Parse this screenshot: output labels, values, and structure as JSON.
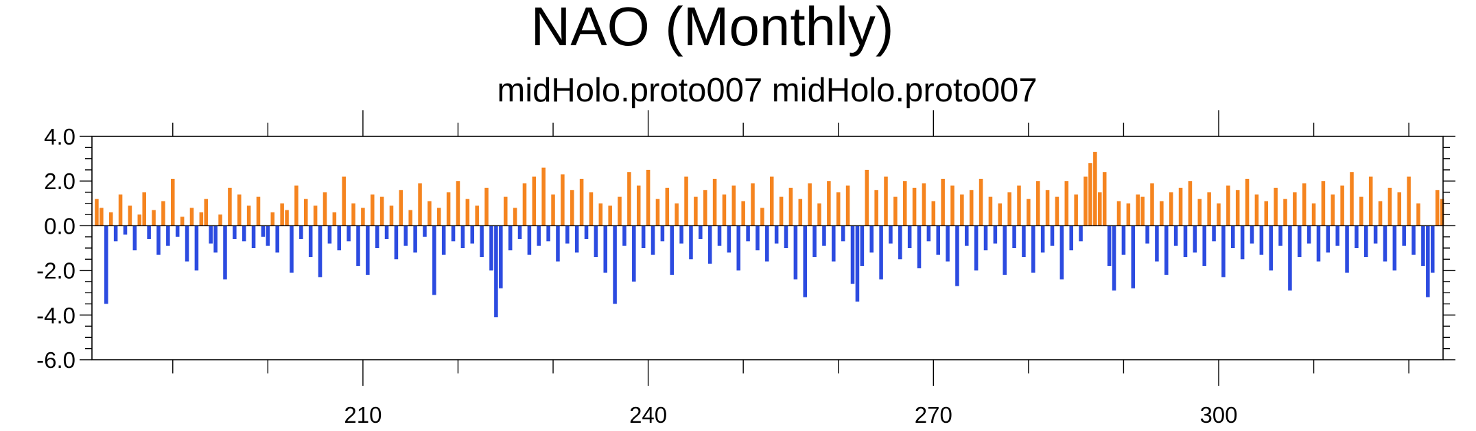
{
  "chart_data": {
    "type": "bar",
    "title": "NAO (Monthly)",
    "subtitle": "midHolo.proto007  midHolo.proto007",
    "positive_color": "#f5841f",
    "negative_color": "#2c4be0",
    "xlim": [
      181.5,
      323.6
    ],
    "xticks": [
      210,
      240,
      270,
      300
    ],
    "xminor_ticks": [
      190,
      200,
      220,
      230,
      250,
      260,
      280,
      290,
      310,
      320
    ],
    "ylim": [
      -6,
      4
    ],
    "yticks": [
      {
        "value": -6,
        "label": "-6.0"
      },
      {
        "value": -4,
        "label": "-4.0"
      },
      {
        "value": -2,
        "label": "-2.0"
      },
      {
        "value": 0,
        "label": "0.0"
      },
      {
        "value": 2,
        "label": "2.0"
      },
      {
        "value": 4,
        "label": "4.0"
      }
    ],
    "yminor_ticks": [
      -5.5,
      -5,
      -4.5,
      -3.5,
      -3,
      -2.5,
      -1.5,
      -1,
      -0.5,
      0.5,
      1,
      1.5,
      2.5,
      3,
      3.5
    ],
    "x": [
      182,
      182.5,
      183,
      183.5,
      184,
      184.5,
      185,
      185.5,
      186,
      186.5,
      187,
      187.5,
      188,
      188.5,
      189,
      189.5,
      190,
      190.5,
      191,
      191.5,
      192,
      192.5,
      193,
      193.5,
      194,
      194.5,
      195,
      195.5,
      196,
      196.5,
      197,
      197.5,
      198,
      198.5,
      199,
      199.5,
      200,
      200.5,
      201,
      201.5,
      202,
      202.5,
      203,
      203.5,
      204,
      204.5,
      205,
      205.5,
      206,
      206.5,
      207,
      207.5,
      208,
      208.5,
      209,
      209.5,
      210,
      210.5,
      211,
      211.5,
      212,
      212.5,
      213,
      213.5,
      214,
      214.5,
      215,
      215.5,
      216,
      216.5,
      217,
      217.5,
      218,
      218.5,
      219,
      219.5,
      220,
      220.5,
      221,
      221.5,
      222,
      222.5,
      223,
      223.5,
      224,
      224.5,
      225,
      225.5,
      226,
      226.5,
      227,
      227.5,
      228,
      228.5,
      229,
      229.5,
      230,
      230.5,
      231,
      231.5,
      232,
      232.5,
      233,
      233.5,
      234,
      234.5,
      235,
      235.5,
      236,
      236.5,
      237,
      237.5,
      238,
      238.5,
      239,
      239.5,
      240,
      240.5,
      241,
      241.5,
      242,
      242.5,
      243,
      243.5,
      244,
      244.5,
      245,
      245.5,
      246,
      246.5,
      247,
      247.5,
      248,
      248.5,
      249,
      249.5,
      250,
      250.5,
      251,
      251.5,
      252,
      252.5,
      253,
      253.5,
      254,
      254.5,
      255,
      255.5,
      256,
      256.5,
      257,
      257.5,
      258,
      258.5,
      259,
      259.5,
      260,
      260.5,
      261,
      261.5,
      262,
      262.5,
      263,
      263.5,
      264,
      264.5,
      265,
      265.5,
      266,
      266.5,
      267,
      267.5,
      268,
      268.5,
      269,
      269.5,
      270,
      270.5,
      271,
      271.5,
      272,
      272.5,
      273,
      273.5,
      274,
      274.5,
      275,
      275.5,
      276,
      276.5,
      277,
      277.5,
      278,
      278.5,
      279,
      279.5,
      280,
      280.5,
      281,
      281.5,
      282,
      282.5,
      283,
      283.5,
      284,
      284.5,
      285,
      285.5,
      286,
      286.5,
      287,
      287.5,
      288,
      288.5,
      289,
      289.5,
      290,
      290.5,
      291,
      291.5,
      292,
      292.5,
      293,
      293.5,
      294,
      294.5,
      295,
      295.5,
      296,
      296.5,
      297,
      297.5,
      298,
      298.5,
      299,
      299.5,
      300,
      300.5,
      301,
      301.5,
      302,
      302.5,
      303,
      303.5,
      304,
      304.5,
      305,
      305.5,
      306,
      306.5,
      307,
      307.5,
      308,
      308.5,
      309,
      309.5,
      310,
      310.5,
      311,
      311.5,
      312,
      312.5,
      313,
      313.5,
      314,
      314.5,
      315,
      315.5,
      316,
      316.5,
      317,
      317.5,
      318,
      318.5,
      319,
      319.5,
      320,
      320.5,
      321,
      321.5,
      322,
      322.5,
      323,
      323.5
    ],
    "values": [
      1.2,
      0.8,
      -3.5,
      0.6,
      -0.7,
      1.4,
      -0.4,
      0.9,
      -1.1,
      0.5,
      1.5,
      -0.6,
      0.7,
      -1.3,
      1.1,
      -0.9,
      2.1,
      -0.5,
      0.4,
      -1.6,
      0.8,
      -2.0,
      0.6,
      1.2,
      -0.8,
      -1.2,
      0.5,
      -2.4,
      1.7,
      -0.6,
      1.4,
      -0.7,
      0.9,
      -1.0,
      1.3,
      -0.5,
      -0.9,
      0.6,
      -1.2,
      1.0,
      0.7,
      -2.1,
      1.8,
      -0.6,
      1.2,
      -1.4,
      0.9,
      -2.3,
      1.5,
      -0.8,
      0.6,
      -1.1,
      2.2,
      -0.7,
      1.0,
      -1.8,
      0.8,
      -2.2,
      1.4,
      -1.0,
      1.3,
      -0.6,
      0.9,
      -1.5,
      1.6,
      -0.9,
      0.7,
      -1.2,
      1.9,
      -0.5,
      1.1,
      -3.1,
      0.8,
      -1.3,
      1.5,
      -0.7,
      2.0,
      -1.0,
      1.2,
      -0.8,
      0.9,
      -1.4,
      1.7,
      -2.0,
      -4.1,
      -2.8,
      1.3,
      -1.1,
      0.8,
      -0.6,
      1.9,
      -1.3,
      2.2,
      -0.9,
      2.6,
      -0.7,
      1.4,
      -1.6,
      2.3,
      -0.8,
      1.6,
      -1.2,
      2.1,
      -0.6,
      1.5,
      -1.4,
      1.0,
      -2.1,
      0.9,
      -3.5,
      1.3,
      -0.9,
      2.4,
      -2.5,
      1.8,
      -1.0,
      2.5,
      -1.3,
      1.2,
      -0.7,
      1.7,
      -2.2,
      1.0,
      -0.8,
      2.2,
      -1.5,
      1.3,
      -0.6,
      1.6,
      -1.7,
      2.1,
      -0.9,
      1.4,
      -1.2,
      1.8,
      -2.0,
      1.1,
      -0.7,
      1.9,
      -1.1,
      0.8,
      -1.6,
      2.2,
      -0.8,
      1.3,
      -1.0,
      1.7,
      -2.4,
      1.2,
      -3.2,
      1.9,
      -1.4,
      1.0,
      -0.9,
      2.0,
      -1.6,
      1.5,
      -0.7,
      1.8,
      -2.6,
      -3.4,
      -1.8,
      2.5,
      -1.2,
      1.6,
      -2.4,
      2.2,
      -0.8,
      1.3,
      -1.5,
      2.0,
      -1.0,
      1.7,
      -1.9,
      1.9,
      -0.7,
      1.1,
      -1.3,
      2.1,
      -1.6,
      1.8,
      -2.7,
      1.4,
      -0.9,
      1.6,
      -2.0,
      2.1,
      -1.1,
      1.3,
      -0.8,
      1.0,
      -2.2,
      1.5,
      -1.0,
      1.8,
      -1.4,
      1.2,
      -2.1,
      2.0,
      -1.2,
      1.6,
      -0.9,
      1.3,
      -2.4,
      2.0,
      -1.1,
      1.4,
      -0.7,
      2.2,
      2.8,
      3.3,
      1.5,
      2.4,
      -1.8,
      -2.9,
      1.1,
      -1.3,
      1.0,
      -2.8,
      1.4,
      1.3,
      -0.8,
      1.9,
      -1.6,
      1.1,
      -2.2,
      1.5,
      -0.9,
      1.7,
      -1.4,
      2.0,
      -1.2,
      1.2,
      -1.8,
      1.5,
      -0.7,
      1.0,
      -2.3,
      1.8,
      -1.0,
      1.6,
      -1.5,
      2.1,
      -0.8,
      1.4,
      -1.3,
      1.1,
      -2.0,
      1.7,
      -0.9,
      1.2,
      -2.9,
      1.5,
      -1.4,
      1.9,
      -0.8,
      1.0,
      -1.6,
      2.0,
      -1.2,
      1.4,
      -0.9,
      1.8,
      -2.1,
      2.4,
      -1.0,
      1.3,
      -1.4,
      2.2,
      -0.8,
      1.1,
      -1.6,
      1.7,
      -2.0,
      1.5,
      -0.9,
      2.2,
      -1.3,
      1.0,
      -1.8,
      -3.2,
      -2.1,
      1.6,
      1.2
    ]
  }
}
